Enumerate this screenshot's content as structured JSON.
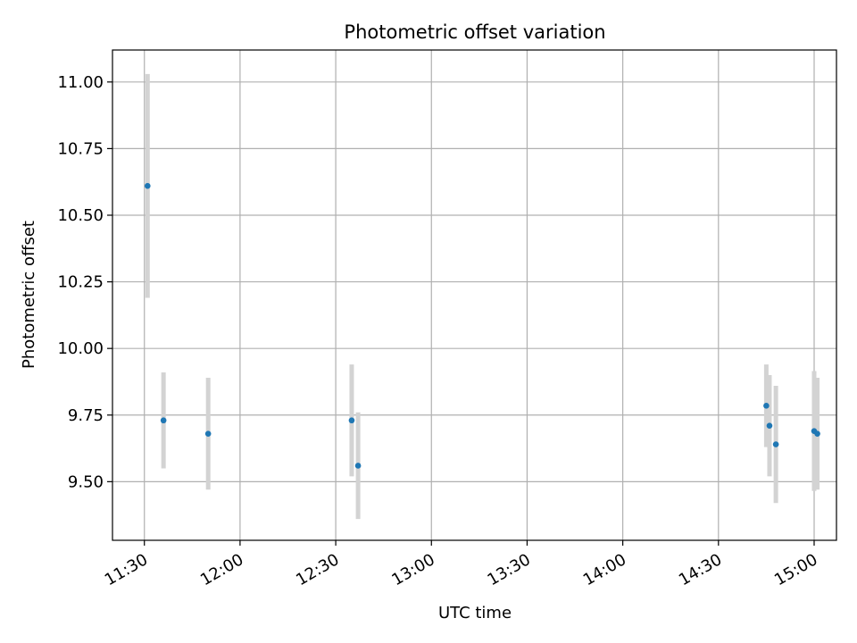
{
  "chart_data": {
    "type": "scatter",
    "title": "Photometric offset variation",
    "xlabel": "UTC time",
    "ylabel": "Photometric offset",
    "grid": true,
    "x_ticks": [
      "11:30",
      "12:00",
      "12:30",
      "13:00",
      "13:30",
      "14:00",
      "14:30",
      "15:00"
    ],
    "y_ticks": [
      "9.50",
      "9.75",
      "10.00",
      "10.25",
      "10.50",
      "10.75",
      "11.00"
    ],
    "xlim": [
      "11:20",
      "15:07"
    ],
    "ylim": [
      9.28,
      11.12
    ],
    "errorbar_color": "#d3d3d3",
    "point_color": "#1f77b4",
    "series": [
      {
        "points": [
          {
            "x": "11:31",
            "y": 10.61,
            "yerr": 0.42
          },
          {
            "x": "11:36",
            "y": 9.73,
            "yerr": 0.18
          },
          {
            "x": "11:50",
            "y": 9.68,
            "yerr": 0.21
          },
          {
            "x": "12:35",
            "y": 9.73,
            "yerr": 0.21
          },
          {
            "x": "12:37",
            "y": 9.56,
            "yerr": 0.2
          },
          {
            "x": "14:45",
            "y": 9.785,
            "yerr": 0.155
          },
          {
            "x": "14:46",
            "y": 9.71,
            "yerr": 0.19
          },
          {
            "x": "14:48",
            "y": 9.64,
            "yerr": 0.22
          },
          {
            "x": "15:00",
            "y": 9.69,
            "yerr": 0.225
          },
          {
            "x": "15:01",
            "y": 9.68,
            "yerr": 0.21
          }
        ]
      }
    ]
  }
}
